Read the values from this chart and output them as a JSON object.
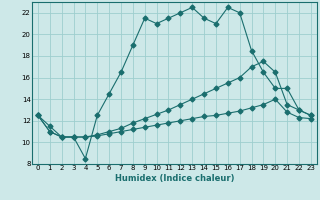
{
  "title": "",
  "xlabel": "Humidex (Indice chaleur)",
  "ylabel": "",
  "bg_color": "#cde8e8",
  "line_color": "#1a6e6e",
  "grid_color": "#9ecece",
  "xlim": [
    -0.5,
    23.5
  ],
  "ylim": [
    8,
    23
  ],
  "xticks": [
    0,
    1,
    2,
    3,
    4,
    5,
    6,
    7,
    8,
    9,
    10,
    11,
    12,
    13,
    14,
    15,
    16,
    17,
    18,
    19,
    20,
    21,
    22,
    23
  ],
  "yticks": [
    8,
    10,
    12,
    14,
    16,
    18,
    20,
    22
  ],
  "line1_x": [
    0,
    1,
    2,
    3,
    4,
    5,
    6,
    7,
    8,
    9,
    10,
    11,
    12,
    13,
    14,
    15,
    16,
    17,
    18,
    19,
    20,
    21,
    22,
    23
  ],
  "line1_y": [
    12.5,
    11.5,
    10.5,
    10.5,
    8.5,
    12.5,
    14.5,
    16.5,
    19.0,
    21.5,
    21.0,
    21.5,
    22.0,
    22.5,
    21.5,
    21.0,
    22.5,
    22.0,
    18.5,
    16.5,
    15.0,
    15.0,
    13.0,
    12.5
  ],
  "line2_x": [
    0,
    1,
    2,
    3,
    4,
    5,
    6,
    7,
    8,
    9,
    10,
    11,
    12,
    13,
    14,
    15,
    16,
    17,
    18,
    19,
    20,
    21,
    22,
    23
  ],
  "line2_y": [
    12.5,
    11.0,
    10.5,
    10.5,
    10.5,
    10.7,
    11.0,
    11.3,
    11.8,
    12.2,
    12.6,
    13.0,
    13.5,
    14.0,
    14.5,
    15.0,
    15.5,
    16.0,
    17.0,
    17.5,
    16.5,
    13.5,
    13.0,
    12.5
  ],
  "line3_x": [
    0,
    1,
    2,
    3,
    4,
    5,
    6,
    7,
    8,
    9,
    10,
    11,
    12,
    13,
    14,
    15,
    16,
    17,
    18,
    19,
    20,
    21,
    22,
    23
  ],
  "line3_y": [
    12.5,
    11.0,
    10.5,
    10.5,
    10.5,
    10.6,
    10.8,
    11.0,
    11.2,
    11.4,
    11.6,
    11.8,
    12.0,
    12.2,
    12.4,
    12.5,
    12.7,
    12.9,
    13.2,
    13.5,
    14.0,
    12.8,
    12.3,
    12.2
  ]
}
